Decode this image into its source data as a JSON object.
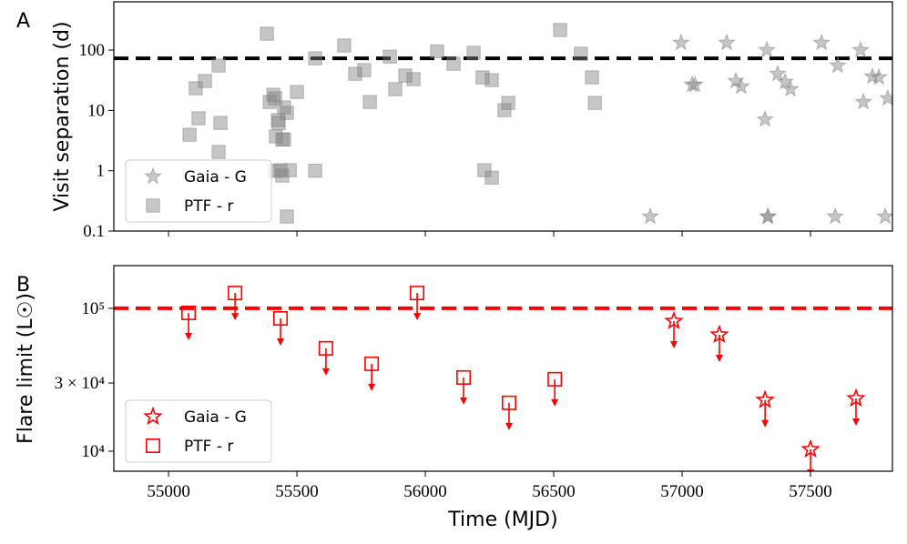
{
  "chart_data": [
    {
      "type": "scatter",
      "panel_label": "A",
      "ylabel": "Visit separation (d)",
      "log_y": true,
      "ylim": [
        0.1,
        631
      ],
      "yticks": [
        0.1,
        1,
        10,
        100
      ],
      "xlim": [
        54787,
        57819
      ],
      "reference_line": 73,
      "reference_color": "#000000",
      "legend": "lower left",
      "series": [
        {
          "name": "Gaia - G",
          "marker": "star",
          "color": "#808080",
          "filled": true,
          "x": [
            56876,
            56996,
            57039,
            57174,
            57209,
            57230,
            57323,
            57330,
            57333,
            57372,
            57401,
            57422,
            57543,
            57596,
            57606,
            57695,
            57706,
            57741,
            57766,
            57791,
            57801,
            57050,
            57335
          ],
          "values": [
            0.174,
            132,
            26.7,
            132,
            30.7,
            24.9,
            7.1,
            100,
            0.174,
            40.5,
            29.7,
            22.5,
            132,
            0.174,
            55.4,
            100,
            13.8,
            36.5,
            35.3,
            0.174,
            15.9,
            26.7,
            0.174
          ]
        },
        {
          "name": "PTF - r",
          "marker": "square",
          "color": "#808080",
          "filled": true,
          "x": [
            55082,
            55106,
            55142,
            55117,
            55195,
            55202,
            55195,
            55383,
            55394,
            55408,
            55415,
            55426,
            55429,
            55418,
            55443,
            55450,
            55436,
            55415,
            55443,
            55450,
            55461,
            55472,
            55461,
            55500,
            55571,
            55571,
            55684,
            55727,
            55762,
            55784,
            55862,
            55883,
            55922,
            55954,
            56046,
            56110,
            56188,
            56223,
            56230,
            56259,
            56259,
            56308,
            56323,
            56525,
            56606,
            56649,
            56660
          ],
          "values": [
            3.95,
            23.3,
            30.7,
            7.4,
            55.4,
            6.2,
            2.05,
            187,
            13.8,
            18.2,
            15.9,
            6.9,
            6.2,
            3.69,
            3.3,
            3.3,
            1.02,
            0.99,
            0.83,
            11.2,
            9.1,
            1.02,
            0.174,
            20.2,
            1.0,
            73,
            119,
            40.5,
            46.6,
            13.8,
            78,
            22.5,
            37.8,
            32.9,
            95,
            59.4,
            90,
            35.3,
            1.02,
            0.77,
            31.8,
            10.1,
            13.3,
            215,
            87,
            35.3,
            13.3
          ]
        }
      ]
    },
    {
      "type": "upper_limits",
      "panel_label": "B",
      "ylabel": "Flare limit (L☉)",
      "xlabel": "Time (MJD)",
      "log_y": true,
      "ylim": [
        7240,
        199000
      ],
      "yticks": [
        {
          "value": 10000,
          "label": "10⁴"
        },
        {
          "value": 30000,
          "label": "3 × 10⁴"
        },
        {
          "value": 100000,
          "label": "10⁵"
        }
      ],
      "xlim": [
        54787,
        57819
      ],
      "xticks": [
        55000,
        55500,
        56000,
        56500,
        57000,
        57500
      ],
      "reference_line": 100000,
      "reference_color": "#ff0000",
      "legend": "lower left",
      "series": [
        {
          "name": "Gaia - G",
          "marker": "star",
          "color": "#ff0000",
          "filled": false,
          "x": [
            56968,
            57145,
            57323,
            57500,
            57677
          ],
          "values": [
            81400,
            65300,
            22800,
            10300,
            23400
          ]
        },
        {
          "name": "PTF - r",
          "marker": "square",
          "color": "#ff0000",
          "filled": false,
          "x": [
            55078,
            55259,
            55436,
            55613,
            55791,
            55968,
            56149,
            56326,
            56504
          ],
          "values": [
            92900,
            128000,
            85000,
            52500,
            40900,
            128000,
            32800,
            21800,
            31900
          ]
        }
      ]
    }
  ]
}
